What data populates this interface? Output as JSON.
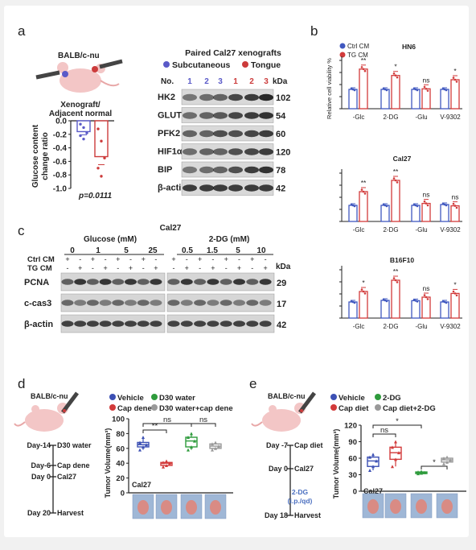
{
  "panels": {
    "a": "a",
    "b": "b",
    "c": "c",
    "d": "d",
    "e": "e"
  },
  "a": {
    "mouse": "BALB/c-nu",
    "ratio_title1": "Xenograft/",
    "ratio_title2": "Adjacent normal",
    "ylabel1": "Glucose content",
    "ylabel2": "change ratio",
    "yticks": [
      "0.0",
      "-0.2",
      "-0.4",
      "-0.6",
      "-0.8",
      "-1.0"
    ],
    "pvalue": "p=0.0111",
    "chart_data": {
      "type": "bar",
      "categories": [
        "Subcutaneous",
        "Tongue"
      ],
      "values": [
        -0.16,
        -0.53
      ],
      "ylim": [
        -1.0,
        0.0
      ],
      "points": [
        [
          -0.05,
          -0.1,
          -0.18,
          -0.22,
          -0.27
        ],
        [
          -0.12,
          -0.3,
          -0.55,
          -0.7,
          -0.82
        ]
      ],
      "colors": [
        "#5a5ac8",
        "#cc3b3b"
      ]
    },
    "blot_title": "Paired Cal27 xenografts",
    "legend": [
      "Subcutaneous",
      "Tongue"
    ],
    "no_label": "No.",
    "lanes": [
      "1",
      "2",
      "3",
      "1",
      "2",
      "3"
    ],
    "kda": "kDa",
    "proteins": [
      "HK2",
      "GLUT1",
      "PFK2",
      "HIF1α",
      "BIP",
      "β-actin"
    ],
    "kda_values": [
      "102",
      "54",
      "60",
      "120",
      "78",
      "42"
    ]
  },
  "b": {
    "legend": [
      "Ctrl CM",
      "TG CM"
    ],
    "ylabel1": "Relative cell viability %",
    "colors": {
      "ctrl": "#4058c0",
      "tg": "#d23a3a"
    },
    "chart_data": [
      {
        "type": "bar",
        "title": "HN6",
        "categories": [
          "-Glc",
          "2-DG",
          "-Glu",
          "V-9302"
        ],
        "series": [
          {
            "name": "Ctrl CM",
            "values": [
              100,
              100,
              100,
              100
            ]
          },
          {
            "name": "TG CM",
            "values": [
              205,
              172,
              103,
              150
            ]
          }
        ],
        "sig": [
          "**",
          "*",
          "ns",
          "*"
        ],
        "ylim": [
          0,
          250
        ]
      },
      {
        "type": "bar",
        "title": "Cal27",
        "categories": [
          "-Glc",
          "2-DG",
          "-Glu",
          "V-9302"
        ],
        "series": [
          {
            "name": "Ctrl CM",
            "values": [
              100,
              100,
              100,
              105
            ]
          },
          {
            "name": "TG CM",
            "values": [
              185,
              255,
              112,
              97
            ]
          }
        ],
        "sig": [
          "**",
          "**",
          "ns",
          "ns"
        ],
        "ylim": [
          0,
          300
        ]
      },
      {
        "type": "bar",
        "title": "B16F10",
        "categories": [
          "-Glc",
          "2-DG",
          "-Glu",
          "V-9302"
        ],
        "series": [
          {
            "name": "Ctrl CM",
            "values": [
              100,
              110,
              108,
              100
            ]
          },
          {
            "name": "TG CM",
            "values": [
              165,
              235,
              130,
              153
            ]
          }
        ],
        "sig": [
          "*",
          "**",
          "ns",
          "*"
        ],
        "ylim": [
          0,
          300
        ]
      }
    ]
  },
  "c": {
    "title": "Cal27",
    "glucose": "Glucose (mM)",
    "dg": "2-DG (mM)",
    "glucose_conc": [
      "0",
      "1",
      "5",
      "25"
    ],
    "dg_conc": [
      "0.5",
      "1.5",
      "5",
      "10"
    ],
    "rows": [
      "Ctrl CM",
      "TG CM"
    ],
    "plus": "+",
    "minus": "-",
    "kda": "kDa",
    "proteins": [
      "PCNA",
      "c-cas3",
      "β-actin"
    ],
    "kda_values": [
      "29",
      "17",
      "42"
    ]
  },
  "d": {
    "mouse": "BALB/c-nu",
    "timeline": [
      {
        "day": "Day-14",
        "event": "D30 water"
      },
      {
        "day": "Day-6",
        "event": "Cap dene"
      },
      {
        "day": "Day 0",
        "event": "Cal27"
      },
      {
        "day": "Day 20",
        "event": "Harvest"
      }
    ],
    "legend": [
      "Vehicle",
      "D30 water",
      "Cap dene",
      "D30 water+cap dene"
    ],
    "ylabel": "Tumor Volume(mm³)",
    "yticks": [
      "0",
      "20",
      "40",
      "60",
      "80",
      "100"
    ],
    "sig": [
      "**",
      "ns",
      "ns"
    ],
    "cell": "Cal27",
    "chart_data": {
      "type": "box",
      "categories": [
        "Vehicle",
        "Cap dene",
        "D30 water",
        "D30 water+cap dene"
      ],
      "values": [
        [
          58,
          62,
          65,
          68,
          75
        ],
        [
          35,
          37,
          40,
          41,
          43
        ],
        [
          58,
          62,
          70,
          75,
          80
        ],
        [
          58,
          60,
          63,
          66,
          68
        ]
      ],
      "ylim": [
        0,
        100
      ],
      "colors": [
        "#3c50b4",
        "#d23a3a",
        "#2e9b3c",
        "#999999"
      ]
    }
  },
  "e": {
    "mouse": "BALB/c-nu",
    "timeline": [
      {
        "day": "Day -7",
        "event": "Cap diet"
      },
      {
        "day": "Day 0",
        "event": "Cal27"
      },
      {
        "day": "Day 18",
        "event": "Harvest"
      }
    ],
    "drug": [
      "2-DG",
      "(i.p./qd)"
    ],
    "legend": [
      "Vehicle",
      "2-DG",
      "Cap diet",
      "Cap diet+2-DG"
    ],
    "ylabel": "Tumor Volume(mm³)",
    "yticks": [
      "0",
      "30",
      "60",
      "90",
      "120"
    ],
    "sig": [
      "ns",
      "*",
      "*"
    ],
    "cell": "Cal27",
    "chart_data": {
      "type": "box",
      "categories": [
        "Vehicle",
        "Cap diet",
        "2-DG",
        "Cap diet+2-DG"
      ],
      "values": [
        [
          38,
          45,
          55,
          62,
          67
        ],
        [
          45,
          58,
          70,
          80,
          90
        ],
        [
          32,
          33,
          34,
          35,
          36
        ],
        [
          50,
          53,
          57,
          60,
          62
        ]
      ],
      "ylim": [
        0,
        120
      ],
      "colors": [
        "#3c50b4",
        "#d23a3a",
        "#2e9b3c",
        "#999999"
      ]
    }
  }
}
